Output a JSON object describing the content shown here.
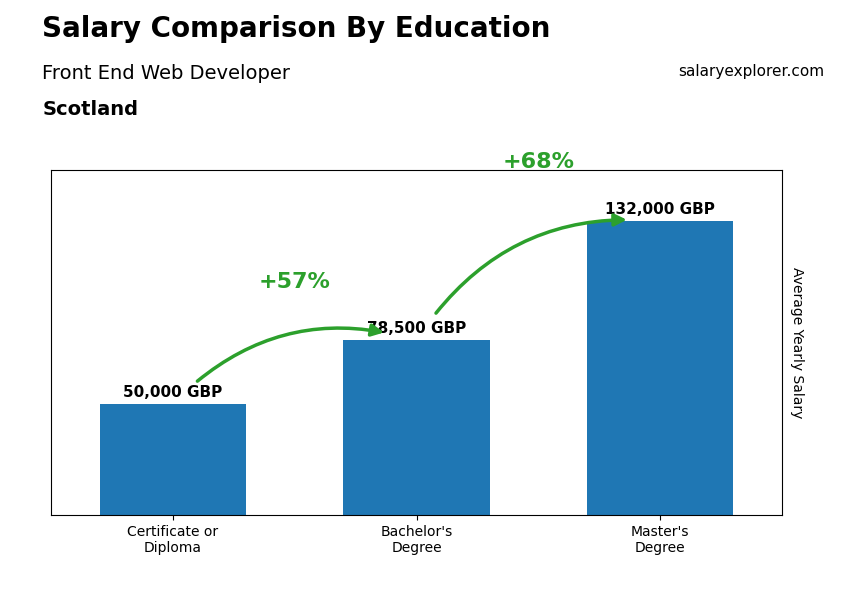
{
  "chart_data": {
    "type": "bar",
    "title": "Salary Comparison By Education",
    "subtitle": "Front End Web Developer",
    "ylabel": "Average Yearly Salary",
    "categories": [
      "Certificate or\nDiploma",
      "Bachelor's\nDegree",
      "Master's\nDegree"
    ],
    "values": [
      50000,
      78500,
      132000
    ],
    "value_labels": [
      "50,000 GBP",
      "78,500 GBP",
      "132,000 GBP"
    ],
    "data_labels": true,
    "ylim": [
      0,
      155000
    ],
    "tick_labels": "x",
    "grid": false,
    "annotations": [
      {
        "text": "+57%",
        "from": "Certificate or\nDiploma",
        "to": "Bachelor's\nDegree"
      },
      {
        "text": "+68%",
        "from": "Bachelor's\nDegree",
        "to": "Master's\nDegree"
      },
      {
        "text": "Scotland"
      },
      {
        "text": "salaryexplorer.com"
      }
    ]
  }
}
